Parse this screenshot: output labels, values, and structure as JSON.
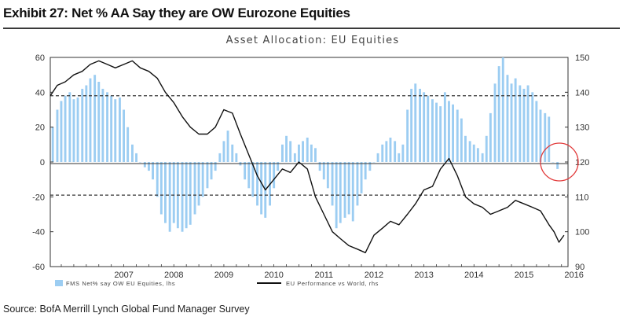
{
  "exhibit_title": "Exhibit 27: Net % AA Say they are OW Eurozone Equities",
  "source": "Source: BofA Merrill Lynch Global Fund Manager Survey",
  "colors": {
    "bars": "#9ccdf2",
    "line": "#111111",
    "highlight_circle": "#e23a3a",
    "dashed_lines": "#333333"
  },
  "chart_data": {
    "type": "bar",
    "title": "Asset Allocation: EU Equities",
    "x_tick_labels": [
      "2007",
      "2008",
      "2009",
      "2010",
      "2011",
      "2012",
      "2013",
      "2014",
      "2015",
      "2016"
    ],
    "x_range": [
      2006.03,
      2016.38
    ],
    "y_left": {
      "range": [
        -60,
        60
      ],
      "ticks": [
        60,
        40,
        20,
        0,
        -20,
        -40,
        -60
      ]
    },
    "y_right": {
      "range": [
        90,
        150
      ],
      "ticks": [
        150,
        140,
        130,
        120,
        110,
        100,
        90
      ]
    },
    "reference_lines_left_axis": [
      38,
      -19
    ],
    "legend": [
      "FMS Net% say OW EU Equities, lhs",
      "EU Performance vs World, rhs"
    ],
    "series": [
      {
        "name": "FMS Net% say OW EU Equities, lhs",
        "type": "bar",
        "axis": "left",
        "x": [
          2006.08,
          2006.17,
          2006.25,
          2006.33,
          2006.42,
          2006.5,
          2006.58,
          2006.67,
          2006.75,
          2006.83,
          2006.92,
          2007.0,
          2007.08,
          2007.17,
          2007.25,
          2007.33,
          2007.42,
          2007.5,
          2007.58,
          2007.67,
          2007.75,
          2007.83,
          2007.92,
          2008.0,
          2008.08,
          2008.17,
          2008.25,
          2008.33,
          2008.42,
          2008.5,
          2008.58,
          2008.67,
          2008.75,
          2008.83,
          2008.92,
          2009.0,
          2009.08,
          2009.17,
          2009.25,
          2009.33,
          2009.42,
          2009.5,
          2009.58,
          2009.67,
          2009.75,
          2009.83,
          2009.92,
          2010.0,
          2010.08,
          2010.17,
          2010.25,
          2010.33,
          2010.42,
          2010.5,
          2010.58,
          2010.67,
          2010.75,
          2010.83,
          2010.92,
          2011.0,
          2011.08,
          2011.17,
          2011.25,
          2011.33,
          2011.42,
          2011.5,
          2011.58,
          2011.67,
          2011.75,
          2011.83,
          2011.92,
          2012.0,
          2012.08,
          2012.17,
          2012.25,
          2012.33,
          2012.42,
          2012.5,
          2012.58,
          2012.67,
          2012.75,
          2012.83,
          2012.92,
          2013.0,
          2013.08,
          2013.17,
          2013.25,
          2013.33,
          2013.42,
          2013.5,
          2013.58,
          2013.67,
          2013.75,
          2013.83,
          2013.92,
          2014.0,
          2014.08,
          2014.17,
          2014.25,
          2014.33,
          2014.42,
          2014.5,
          2014.58,
          2014.67,
          2014.75,
          2014.83,
          2014.92,
          2015.0,
          2015.08,
          2015.17,
          2015.25,
          2015.33,
          2015.42,
          2015.5,
          2015.58,
          2015.67,
          2015.75,
          2015.83,
          2015.92,
          2016.0,
          2016.08,
          2016.17
        ],
        "values": [
          20,
          30,
          35,
          38,
          40,
          36,
          37,
          42,
          44,
          48,
          50,
          46,
          42,
          40,
          38,
          36,
          37,
          30,
          20,
          10,
          5,
          0,
          -3,
          -5,
          -10,
          -20,
          -30,
          -35,
          -40,
          -35,
          -38,
          -40,
          -38,
          -36,
          -30,
          -25,
          -20,
          -15,
          -10,
          -5,
          5,
          12,
          18,
          10,
          5,
          -2,
          -10,
          -15,
          -20,
          -25,
          -30,
          -32,
          -25,
          -15,
          -5,
          10,
          15,
          12,
          5,
          10,
          12,
          14,
          10,
          8,
          -5,
          -10,
          -15,
          -25,
          -38,
          -35,
          -32,
          -30,
          -34,
          -25,
          -18,
          -10,
          -5,
          0,
          5,
          10,
          12,
          14,
          12,
          5,
          10,
          30,
          42,
          45,
          42,
          40,
          38,
          36,
          34,
          32,
          40,
          35,
          33,
          30,
          25,
          15,
          12,
          10,
          8,
          5,
          15,
          28,
          45,
          55,
          60,
          50,
          45,
          48,
          44,
          42,
          44,
          40,
          35,
          30,
          28,
          26,
          0,
          -4
        ],
        "visible_labels": []
      },
      {
        "name": "EU Performance vs World, rhs",
        "type": "line",
        "axis": "right",
        "x": [
          2006.03,
          2006.17,
          2006.33,
          2006.5,
          2006.67,
          2006.83,
          2007.0,
          2007.17,
          2007.33,
          2007.5,
          2007.67,
          2007.83,
          2008.0,
          2008.17,
          2008.33,
          2008.5,
          2008.67,
          2008.83,
          2009.0,
          2009.17,
          2009.33,
          2009.5,
          2009.67,
          2009.83,
          2010.0,
          2010.17,
          2010.33,
          2010.5,
          2010.67,
          2010.83,
          2011.0,
          2011.17,
          2011.33,
          2011.5,
          2011.67,
          2011.83,
          2012.0,
          2012.17,
          2012.33,
          2012.5,
          2012.67,
          2012.83,
          2013.0,
          2013.17,
          2013.33,
          2013.5,
          2013.67,
          2013.83,
          2014.0,
          2014.17,
          2014.33,
          2014.5,
          2014.67,
          2014.83,
          2015.0,
          2015.17,
          2015.33,
          2015.5,
          2015.67,
          2015.83,
          2016.0,
          2016.1,
          2016.2,
          2016.3
        ],
        "values": [
          139,
          142,
          143,
          145,
          146,
          148,
          149,
          148,
          147,
          148,
          149,
          147,
          146,
          144,
          140,
          137,
          133,
          130,
          128,
          128,
          130,
          135,
          134,
          128,
          122,
          116,
          112,
          115,
          118,
          117,
          120,
          118,
          110,
          105,
          100,
          98,
          96,
          95,
          94,
          99,
          101,
          103,
          102,
          105,
          108,
          112,
          113,
          118,
          121,
          116,
          110,
          108,
          107,
          105,
          106,
          107,
          109,
          108,
          107,
          106,
          102,
          100,
          97,
          99
        ],
        "visible_labels": []
      }
    ],
    "annotations": [
      "red circle around latest readings near zero"
    ]
  }
}
